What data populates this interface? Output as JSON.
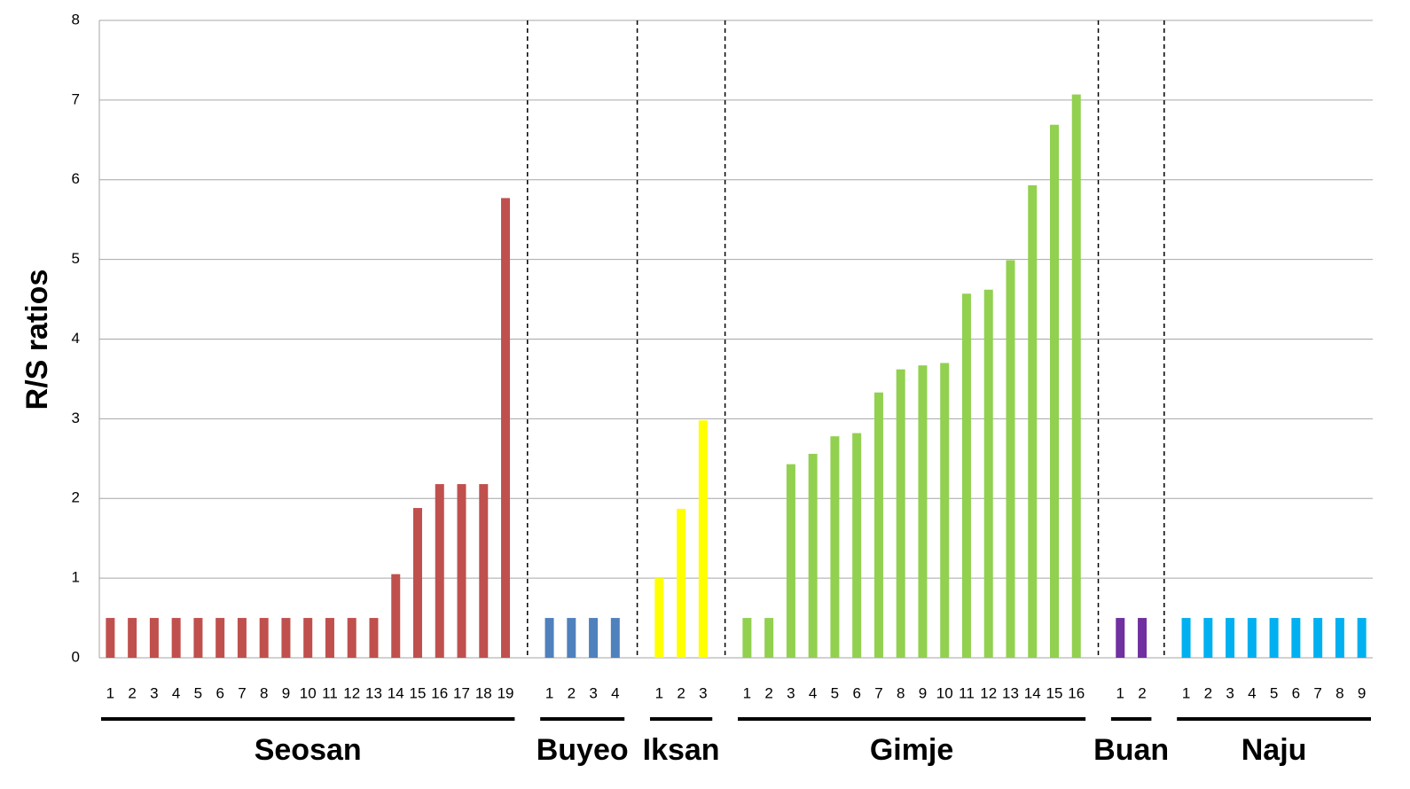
{
  "chart_data": {
    "type": "bar",
    "y_label": "R/S ratios",
    "ylim": [
      0,
      8
    ],
    "yticks": [
      0,
      1,
      2,
      3,
      4,
      5,
      6,
      7,
      8
    ],
    "grid": true,
    "groups": [
      {
        "name": "Seosan",
        "color": "#c0504d",
        "categories": [
          "1",
          "2",
          "3",
          "4",
          "5",
          "6",
          "7",
          "8",
          "9",
          "10",
          "11",
          "12",
          "13",
          "14",
          "15",
          "16",
          "17",
          "18",
          "19"
        ],
        "values": [
          0.5,
          0.5,
          0.5,
          0.5,
          0.5,
          0.5,
          0.5,
          0.5,
          0.5,
          0.5,
          0.5,
          0.5,
          0.5,
          1.05,
          1.88,
          2.18,
          2.18,
          2.18,
          5.77
        ]
      },
      {
        "name": "Buyeo",
        "color": "#4f81bd",
        "categories": [
          "1",
          "2",
          "3",
          "4"
        ],
        "values": [
          0.5,
          0.5,
          0.5,
          0.5
        ]
      },
      {
        "name": "Iksan",
        "color": "#ffff00",
        "categories": [
          "1",
          "2",
          "3"
        ],
        "values": [
          1.0,
          1.87,
          2.98
        ]
      },
      {
        "name": "Gimje",
        "color": "#92d050",
        "categories": [
          "1",
          "2",
          "3",
          "4",
          "5",
          "6",
          "7",
          "8",
          "9",
          "10",
          "11",
          "12",
          "13",
          "14",
          "15",
          "16"
        ],
        "values": [
          0.5,
          0.5,
          2.43,
          2.56,
          2.78,
          2.82,
          3.33,
          3.62,
          3.67,
          3.7,
          4.57,
          4.62,
          4.99,
          5.93,
          6.69,
          7.07
        ]
      },
      {
        "name": "Buan",
        "color": "#7030a0",
        "categories": [
          "1",
          "2"
        ],
        "values": [
          0.5,
          0.5
        ]
      },
      {
        "name": "Naju",
        "color": "#00b0f0",
        "categories": [
          "1",
          "2",
          "3",
          "4",
          "5",
          "6",
          "7",
          "8",
          "9"
        ],
        "values": [
          0.5,
          0.5,
          0.5,
          0.5,
          0.5,
          0.5,
          0.5,
          0.5,
          0.5
        ]
      }
    ]
  }
}
